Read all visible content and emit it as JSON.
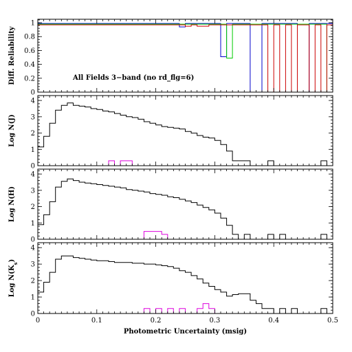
{
  "chart_data": [
    {
      "type": "line",
      "name": "reliability",
      "annotation": "All Fields 3−band (no rd_flg=6)",
      "ylabel": "Diff. Reliability",
      "xlim": [
        0,
        0.5
      ],
      "ylim": [
        0,
        1.05
      ],
      "yticks": [
        0,
        0.2,
        0.4,
        0.6,
        0.8,
        1
      ],
      "ytick_labels": [
        "0",
        "0.2",
        "0.4",
        "0.6",
        "0.8",
        "1"
      ],
      "bin_width": 0.01,
      "series": [
        {
          "color": "#0000cc",
          "values": [
            0.99,
            0.99,
            0.99,
            0.99,
            0.99,
            0.99,
            0.99,
            0.99,
            0.99,
            0.99,
            0.99,
            0.99,
            0.99,
            0.99,
            0.99,
            0.99,
            0.99,
            0.99,
            0.99,
            0.99,
            0.99,
            0.99,
            0.99,
            0.99,
            0.94,
            0.99,
            0.99,
            0.99,
            0.99,
            0.99,
            0.99,
            0.51,
            0.99,
            0.99,
            0.99,
            0.99,
            0,
            0,
            0.99,
            0.99,
            0.99,
            0.99,
            0.99,
            0.99,
            0,
            0,
            0.99,
            0.99,
            0.99,
            0.99
          ]
        },
        {
          "color": "#00cc00",
          "values": [
            0.98,
            0.98,
            0.98,
            0.98,
            0.98,
            0.98,
            0.98,
            0.98,
            0.98,
            0.98,
            0.98,
            0.98,
            0.98,
            0.98,
            0.98,
            0.98,
            0.98,
            0.98,
            0.98,
            0.98,
            0.98,
            0.98,
            0.98,
            0.98,
            0.98,
            0.98,
            0.98,
            0.98,
            0.98,
            0.98,
            0.98,
            0.98,
            0.49,
            0.98,
            0.98,
            0.98,
            0.98,
            0.98,
            0.98,
            0.98,
            0.98,
            0.98,
            0.98,
            0.98,
            0.98,
            0.98,
            0.98,
            0.98,
            0.98,
            0
          ]
        },
        {
          "color": "#cc0000",
          "values": [
            0.97,
            0.97,
            0.97,
            0.97,
            0.97,
            0.97,
            0.97,
            0.97,
            0.97,
            0.97,
            0.97,
            0.97,
            0.97,
            0.97,
            0.97,
            0.97,
            0.97,
            0.97,
            0.97,
            0.97,
            0.97,
            0.97,
            0.97,
            0.97,
            0.97,
            0.95,
            0.97,
            0.95,
            0.95,
            0.97,
            0.97,
            0.97,
            0.97,
            0.97,
            0.97,
            0.97,
            0.97,
            0.97,
            0.97,
            0,
            0.97,
            0,
            0.97,
            0,
            0.97,
            0.97,
            0,
            0.97,
            0,
            0.97
          ]
        }
      ]
    },
    {
      "type": "step",
      "name": "hist-j",
      "ylabel": "Log N(J)",
      "xlim": [
        0,
        0.5
      ],
      "ylim": [
        0,
        4.3
      ],
      "yticks": [
        0,
        1,
        2,
        3,
        4
      ],
      "ytick_labels": [
        "0",
        "1",
        "2",
        "3",
        "4"
      ],
      "bin_width": 0.01,
      "series": [
        {
          "color": "#000000",
          "values": [
            1.15,
            1.8,
            2.6,
            3.4,
            3.7,
            3.85,
            3.7,
            3.65,
            3.6,
            3.5,
            3.45,
            3.35,
            3.3,
            3.2,
            3.1,
            3.0,
            2.95,
            2.85,
            2.7,
            2.6,
            2.5,
            2.4,
            2.35,
            2.3,
            2.25,
            2.1,
            2.0,
            1.85,
            1.75,
            1.7,
            1.55,
            1.3,
            0.9,
            0.3,
            0.3,
            0.3,
            0,
            0,
            0,
            0.3,
            0.0,
            0,
            0,
            0,
            0,
            0,
            0,
            0,
            0.3,
            0
          ]
        },
        {
          "color": "#dd00dd",
          "values": [
            0,
            0,
            0,
            0,
            0,
            0,
            0,
            0,
            0,
            0,
            0,
            0,
            0.3,
            0,
            0.3,
            0.3,
            0,
            0,
            0,
            0,
            0,
            0,
            0,
            0,
            0,
            0,
            0,
            0,
            0,
            0,
            0,
            0,
            0,
            0,
            0,
            0,
            0,
            0,
            0,
            0,
            0,
            0,
            0,
            0,
            0,
            0,
            0,
            0,
            0,
            0
          ]
        }
      ],
      "extra_black": [
        [
          0.32,
          0.33,
          0.48
        ],
        [
          0.33,
          0.34,
          0.3
        ],
        [
          0.39,
          0.4,
          0.3
        ],
        [
          0.48,
          0.49,
          0.3
        ]
      ]
    },
    {
      "type": "step",
      "name": "hist-h",
      "ylabel": "Log N(H)",
      "xlim": [
        0,
        0.5
      ],
      "ylim": [
        0,
        4.3
      ],
      "yticks": [
        0,
        1,
        2,
        3,
        4
      ],
      "ytick_labels": [
        "0",
        "1",
        "2",
        "3",
        "4"
      ],
      "bin_width": 0.01,
      "series": [
        {
          "color": "#000000",
          "values": [
            0.9,
            1.5,
            2.3,
            3.2,
            3.55,
            3.7,
            3.6,
            3.5,
            3.45,
            3.4,
            3.35,
            3.3,
            3.25,
            3.2,
            3.15,
            3.05,
            3.0,
            2.95,
            2.9,
            2.8,
            2.75,
            2.7,
            2.6,
            2.55,
            2.45,
            2.35,
            2.25,
            2.1,
            1.95,
            1.8,
            1.6,
            1.3,
            0.85,
            0.3,
            0,
            0.3,
            0,
            0,
            0,
            0.3,
            0,
            0.3,
            0,
            0,
            0,
            0,
            0,
            0,
            0.3,
            0
          ]
        },
        {
          "color": "#dd00dd",
          "values": [
            0,
            0,
            0,
            0,
            0,
            0,
            0,
            0,
            0,
            0,
            0,
            0,
            0,
            0,
            0,
            0,
            0,
            0,
            0.48,
            0.48,
            0.48,
            0.3,
            0,
            0,
            0,
            0,
            0,
            0,
            0,
            0,
            0,
            0,
            0,
            0,
            0,
            0,
            0,
            0,
            0,
            0,
            0,
            0,
            0,
            0,
            0,
            0,
            0,
            0,
            0,
            0
          ]
        }
      ]
    },
    {
      "type": "step",
      "name": "hist-ks",
      "ylabel": "Log N(K",
      "ylabel_sub": "s",
      "ylabel_end": ")",
      "xlabel": "Photometric Uncertainty (msig)",
      "xlim": [
        0,
        0.5
      ],
      "ylim": [
        0,
        4.3
      ],
      "xticks": [
        0,
        0.1,
        0.2,
        0.3,
        0.4,
        0.5
      ],
      "xtick_labels": [
        "0",
        "0.1",
        "0.2",
        "0.3",
        "0.4",
        "0.5"
      ],
      "yticks": [
        0,
        1,
        2,
        3,
        4
      ],
      "ytick_labels": [
        "0",
        "1",
        "2",
        "3",
        "4"
      ],
      "bin_width": 0.01,
      "series": [
        {
          "color": "#000000",
          "values": [
            1.3,
            1.9,
            2.5,
            3.3,
            3.5,
            3.5,
            3.4,
            3.35,
            3.3,
            3.25,
            3.2,
            3.2,
            3.15,
            3.1,
            3.1,
            3.1,
            3.05,
            3.05,
            3.0,
            3.0,
            2.95,
            2.9,
            2.85,
            2.75,
            2.6,
            2.5,
            2.3,
            2.1,
            1.85,
            1.65,
            1.45,
            1.3,
            1.05,
            1.15,
            1.2,
            1.2,
            0.8,
            0.6,
            0.3,
            0.3,
            0,
            0.3,
            0,
            0.3,
            0,
            0,
            0,
            0,
            0.3,
            0
          ]
        },
        {
          "color": "#dd00dd",
          "values": [
            0,
            0,
            0,
            0,
            0,
            0,
            0,
            0,
            0,
            0,
            0,
            0,
            0,
            0,
            0,
            0,
            0,
            0,
            0.3,
            0,
            0.3,
            0,
            0.3,
            0,
            0.3,
            0,
            0,
            0.3,
            0.6,
            0.3,
            0,
            0,
            0,
            0,
            0,
            0,
            0,
            0,
            0,
            0,
            0,
            0,
            0,
            0,
            0,
            0,
            0,
            0,
            0,
            0
          ]
        }
      ]
    }
  ]
}
